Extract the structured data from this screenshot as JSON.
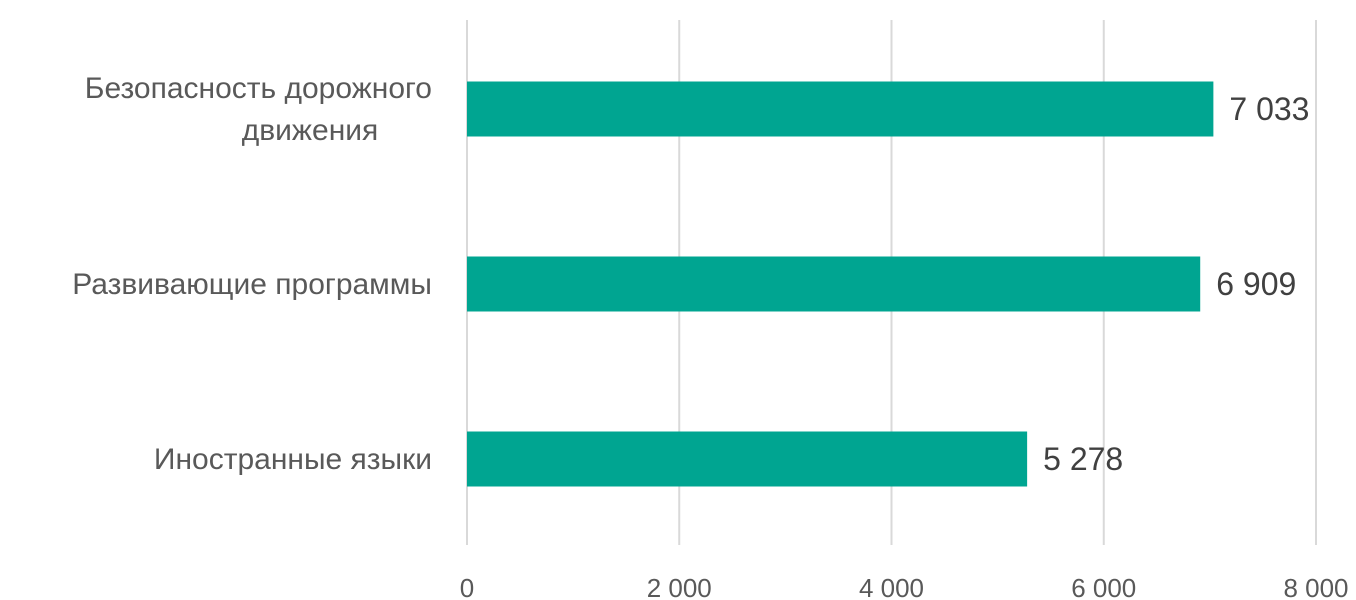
{
  "chart_data": {
    "type": "bar",
    "orientation": "horizontal",
    "categories": [
      [
        "Безопасность дорожного",
        "движения"
      ],
      [
        "Развивающие программы"
      ],
      [
        "Иностранные языки"
      ]
    ],
    "values": [
      7033,
      6909,
      5278
    ],
    "value_labels": [
      "7 033",
      "6 909",
      "5 278"
    ],
    "xlim": [
      0,
      8000
    ],
    "x_ticks": [
      0,
      2000,
      4000,
      6000,
      8000
    ],
    "x_tick_labels": [
      "0",
      "2 000",
      "4 000",
      "6 000",
      "8 000"
    ],
    "grid": "vertical",
    "legend": "none",
    "bar_color": "#00A591"
  }
}
